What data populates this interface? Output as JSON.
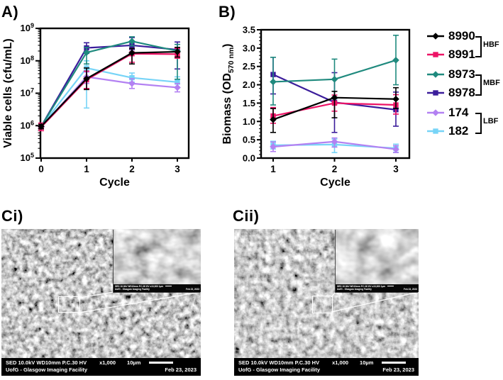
{
  "panels": {
    "a_label": "A)",
    "b_label": "B)",
    "ci_label": "Ci)",
    "cii_label": "Cii)"
  },
  "chart_data": [
    {
      "id": "A",
      "type": "line",
      "x": [
        0,
        1,
        2,
        3
      ],
      "xlabel": "Cycle",
      "ylabel": "Viable cells (cfu/mL)",
      "yscale": "log",
      "ylim": [
        100000.0,
        1000000000.0
      ],
      "yticks_exponents": [
        5,
        6,
        7,
        8,
        9
      ],
      "grid": false,
      "series": [
        {
          "name": "8990",
          "color": "#000000",
          "marker": "diamond",
          "values": [
            950000.0,
            28000000.0,
            175000000.0,
            190000000.0
          ],
          "err_lo": [
            800000.0,
            13000000.0,
            80000000.0,
            130000000.0
          ],
          "err_hi": [
            1100000.0,
            60000000.0,
            240000000.0,
            260000000.0
          ]
        },
        {
          "name": "8991",
          "color": "#ED1366",
          "marker": "square",
          "values": [
            900000.0,
            26000000.0,
            165000000.0,
            160000000.0
          ],
          "err_lo": [
            700000.0,
            14000000.0,
            90000000.0,
            120000000.0
          ],
          "err_hi": [
            1200000.0,
            48000000.0,
            240000000.0,
            240000000.0
          ]
        },
        {
          "name": "8973",
          "color": "#1F8A7E",
          "marker": "diamond",
          "values": [
            950000.0,
            180000000.0,
            400000000.0,
            200000000.0
          ],
          "err_lo": [
            850000.0,
            80000000.0,
            290000000.0,
            27000000.0
          ],
          "err_hi": [
            1050000.0,
            260000000.0,
            550000000.0,
            320000000.0
          ]
        },
        {
          "name": "8978",
          "color": "#3B1D9B",
          "marker": "square",
          "values": [
            950000.0,
            250000000.0,
            300000000.0,
            220000000.0
          ],
          "err_lo": [
            850000.0,
            170000000.0,
            220000000.0,
            56000000.0
          ],
          "err_hi": [
            1050000.0,
            360000000.0,
            520000000.0,
            380000000.0
          ]
        },
        {
          "name": "174",
          "color": "#B381F2",
          "marker": "diamond",
          "values": [
            900000.0,
            32000000.0,
            20000000.0,
            15000000.0
          ],
          "err_lo": [
            800000.0,
            20000000.0,
            14000000.0,
            11000000.0
          ],
          "err_hi": [
            1000000.0,
            45000000.0,
            28000000.0,
            20000000.0
          ]
        },
        {
          "name": "182",
          "color": "#77D4F7",
          "marker": "square",
          "values": [
            950000.0,
            60000000.0,
            30000000.0,
            22000000.0
          ],
          "err_lo": [
            850000.0,
            3500000.0,
            22000000.0,
            15000000.0
          ],
          "err_hi": [
            1050000.0,
            100000000.0,
            42000000.0,
            32000000.0
          ]
        }
      ]
    },
    {
      "id": "B",
      "type": "line",
      "x": [
        1,
        2,
        3
      ],
      "xlabel": "Cycle",
      "ylabel": {
        "pre": "Biomass (OD",
        "sub": "570 nm",
        "post": ")"
      },
      "yscale": "linear",
      "ylim": [
        0,
        3.5
      ],
      "yticks": [
        0,
        0.5,
        1.0,
        1.5,
        2.0,
        2.5,
        3.0,
        3.5
      ],
      "grid": false,
      "series": [
        {
          "name": "8990",
          "color": "#000000",
          "marker": "diamond",
          "values": [
            1.05,
            1.65,
            1.61
          ],
          "err_lo": [
            0.7,
            1.1,
            1.35
          ],
          "err_hi": [
            1.35,
            1.82,
            1.92
          ]
        },
        {
          "name": "8991",
          "color": "#ED1366",
          "marker": "square",
          "values": [
            1.15,
            1.5,
            1.45
          ],
          "err_lo": [
            0.95,
            1.28,
            1.2
          ],
          "err_hi": [
            1.38,
            1.72,
            1.73
          ]
        },
        {
          "name": "8973",
          "color": "#1F8A7E",
          "marker": "diamond",
          "values": [
            2.08,
            2.15,
            2.67
          ],
          "err_lo": [
            1.45,
            1.62,
            2.0
          ],
          "err_hi": [
            2.75,
            2.7,
            3.35
          ]
        },
        {
          "name": "8978",
          "color": "#3B1D9B",
          "marker": "square",
          "values": [
            2.28,
            1.52,
            1.32
          ],
          "err_lo": [
            1.75,
            0.7,
            0.87
          ],
          "err_hi": [
            2.75,
            2.33,
            1.8
          ]
        },
        {
          "name": "174",
          "color": "#B381F2",
          "marker": "diamond",
          "values": [
            0.31,
            0.45,
            0.24
          ],
          "err_lo": [
            0.18,
            0.3,
            0.15
          ],
          "err_hi": [
            0.44,
            0.55,
            0.34
          ]
        },
        {
          "name": "182",
          "color": "#77D4F7",
          "marker": "square",
          "values": [
            0.35,
            0.37,
            0.27
          ],
          "err_lo": [
            0.25,
            0.15,
            0.16
          ],
          "err_hi": [
            0.46,
            0.52,
            0.38
          ]
        }
      ]
    }
  ],
  "legend": {
    "entries": [
      {
        "label": "8990",
        "color": "#000000",
        "marker": "diamond"
      },
      {
        "label": "8991",
        "color": "#ED1366",
        "marker": "square"
      },
      {
        "label": "8973",
        "color": "#1F8A7E",
        "marker": "diamond"
      },
      {
        "label": "8978",
        "color": "#3B1D9B",
        "marker": "square"
      },
      {
        "label": "174",
        "color": "#B381F2",
        "marker": "diamond"
      },
      {
        "label": "182",
        "color": "#77D4F7",
        "marker": "square"
      }
    ],
    "groups": [
      {
        "label": "HBF",
        "members": [
          "8990",
          "8991"
        ]
      },
      {
        "label": "MBF",
        "members": [
          "8973",
          "8978"
        ]
      },
      {
        "label": "LBF",
        "members": [
          "174",
          "182"
        ]
      }
    ]
  },
  "sem": {
    "line1_info": "SED  10.0kV WD10mm P.C.30  HV",
    "line1_mag": "x1,000",
    "line1_scale": "10µm",
    "line2_left": "UofG - Glasgow Imaging Facility",
    "line2_right": "Feb 23, 2023",
    "inset_line1": "SED 10.0kV WD10mm P.C.30 HV   x10,000   1µm",
    "inset_line2_left": "UofG - Glasgow Imaging Facility",
    "inset_line2_right": "Feb 23, 2023"
  }
}
